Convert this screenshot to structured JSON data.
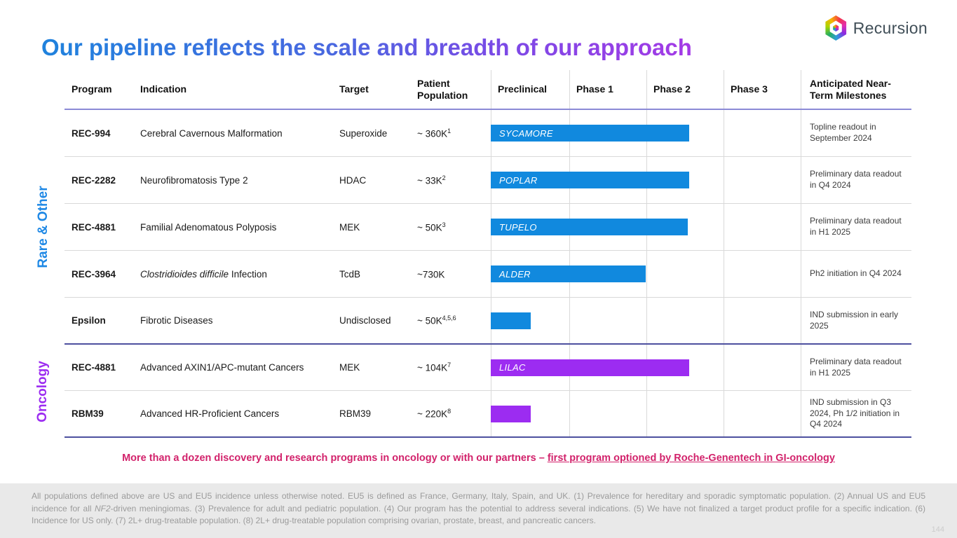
{
  "slide": {
    "title": "Our pipeline reflects the scale and breadth of our approach",
    "logo_text": "Recursion",
    "page_number": "144"
  },
  "colors": {
    "rare_blue_bar": "#1189DE",
    "oncology_purple_bar": "#9C2CF1",
    "rare_label": "#1E88E5",
    "oncology_label": "#9C2CF1",
    "callout_pink": "#D2226B",
    "title_gradient_start": "#1F82DD",
    "title_gradient_end": "#A43AE6"
  },
  "table": {
    "headers": {
      "0": "Program",
      "1": "Indication",
      "2": "Target",
      "3": "Patient Population",
      "4": "Preclinical",
      "5": "Phase 1",
      "6": "Phase 2",
      "7": "Phase 3",
      "8": "Anticipated Near-Term Milestones"
    }
  },
  "sections": [
    {
      "label": "Rare & Other",
      "color": "#1E88E5"
    },
    {
      "label": "Oncology",
      "color": "#9C2CF1"
    }
  ],
  "rows": [
    {
      "program": "REC-994",
      "indication_italic": "",
      "indication": "Cerebral Cavernous Malformation",
      "target": "Superoxide",
      "population": "~ 360K",
      "population_sup": "1",
      "bar": {
        "label": "SYCAMORE",
        "ends_in": "Phase 2",
        "style": "width:283px;background:#1189DE"
      },
      "milestone": "Topline readout in September 2024"
    },
    {
      "program": "REC-2282",
      "indication_italic": "",
      "indication": "Neurofibromatosis Type 2",
      "target": "HDAC",
      "population": "~ 33K",
      "population_sup": "2",
      "bar": {
        "label": "POPLAR",
        "ends_in": "Phase 2",
        "style": "width:283px;background:#1189DE"
      },
      "milestone": "Preliminary data readout in Q4 2024"
    },
    {
      "program": "REC-4881",
      "indication_italic": "",
      "indication": "Familial Adenomatous Polyposis",
      "target": "MEK",
      "population": "~ 50K",
      "population_sup": "3",
      "bar": {
        "label": "TUPELO",
        "ends_in": "Phase 2",
        "style": "width:281px;background:#1189DE"
      },
      "milestone": "Preliminary data readout in H1 2025"
    },
    {
      "program": "REC-3964",
      "indication_italic": "Clostridioides difficile",
      "indication": " Infection",
      "target": "TcdB",
      "population": "~730K",
      "population_sup": "",
      "bar": {
        "label": "ALDER",
        "ends_in": "Phase 1",
        "style": "width:221px;background:#1189DE"
      },
      "milestone": "Ph2 initiation in Q4 2024"
    },
    {
      "program": "Epsilon",
      "indication_italic": "",
      "indication": "Fibrotic Diseases",
      "target": "Undisclosed",
      "population": "~ 50K",
      "population_sup": "4,5,6",
      "bar": {
        "label": "",
        "ends_in": "Preclinical",
        "style": "width:57px;background:#1189DE"
      },
      "milestone": "IND submission in early 2025"
    },
    {
      "program": "REC-4881",
      "indication_italic": "",
      "indication": "Advanced AXIN1/APC-mutant Cancers",
      "target": "MEK",
      "population": "~ 104K",
      "population_sup": "7",
      "bar": {
        "label": "LILAC",
        "ends_in": "Phase 2",
        "style": "width:283px;background:#9C2CF1"
      },
      "milestone": "Preliminary data readout in H1 2025"
    },
    {
      "program": "RBM39",
      "indication_italic": "",
      "indication": "Advanced HR-Proficient Cancers",
      "target": "RBM39",
      "population": "~ 220K",
      "population_sup": "8",
      "bar": {
        "label": "",
        "ends_in": "Preclinical",
        "style": "width:57px;background:#9C2CF1"
      },
      "milestone": "IND submission in Q3 2024, Ph 1/2 initiation in Q4 2024"
    }
  ],
  "callout": {
    "text": "More than a dozen discovery and research programs in oncology or with our partners – ",
    "underlined": "first program optioned by Roche-Genentech in GI-oncology"
  },
  "footnote": {
    "part1": "All populations defined above are US and EU5 incidence unless otherwise noted. EU5 is defined as France, Germany, Italy, Spain, and UK. (1) Prevalence for hereditary and sporadic symptomatic population. (2) Annual US and EU5 incidence for all ",
    "italic": "NF2",
    "part2": "-driven meningiomas. (3) Prevalence for adult and pediatric population. (4) Our program has the potential to address several indications. (5) We have not finalized a target product profile for a specific indication. (6) Incidence for US only. (7) 2L+ drug-treatable population. (8) 2L+ drug-treatable population comprising ovarian, prostate, breast, and pancreatic cancers."
  }
}
